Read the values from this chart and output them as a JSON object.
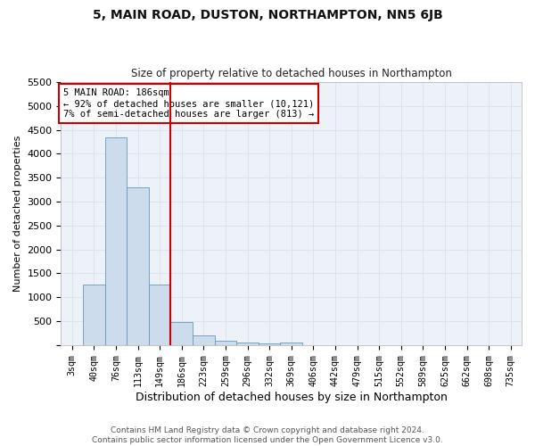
{
  "title": "5, MAIN ROAD, DUSTON, NORTHAMPTON, NN5 6JB",
  "subtitle": "Size of property relative to detached houses in Northampton",
  "xlabel": "Distribution of detached houses by size in Northampton",
  "ylabel": "Number of detached properties",
  "footer_line1": "Contains HM Land Registry data © Crown copyright and database right 2024.",
  "footer_line2": "Contains public sector information licensed under the Open Government Licence v3.0.",
  "annotation_line1": "5 MAIN ROAD: 186sqm",
  "annotation_line2": "← 92% of detached houses are smaller (10,121)",
  "annotation_line3": "7% of semi-detached houses are larger (813) →",
  "bar_labels": [
    "3sqm",
    "40sqm",
    "76sqm",
    "113sqm",
    "149sqm",
    "186sqm",
    "223sqm",
    "259sqm",
    "296sqm",
    "332sqm",
    "369sqm",
    "406sqm",
    "442sqm",
    "479sqm",
    "515sqm",
    "552sqm",
    "589sqm",
    "625sqm",
    "662sqm",
    "698sqm",
    "735sqm"
  ],
  "bar_values": [
    0,
    1260,
    4340,
    3300,
    1260,
    480,
    210,
    95,
    55,
    35,
    55,
    0,
    0,
    0,
    0,
    0,
    0,
    0,
    0,
    0,
    0
  ],
  "bar_color": "#ccdcec",
  "bar_edge_color": "#6699bb",
  "vline_color": "#cc0000",
  "vline_x_index": 4,
  "grid_color": "#d8e4f0",
  "background_color": "#edf2f9",
  "annotation_box_edge_color": "#cc0000",
  "ylim": [
    0,
    5500
  ],
  "yticks": [
    0,
    500,
    1000,
    1500,
    2000,
    2500,
    3000,
    3500,
    4000,
    4500,
    5000,
    5500
  ]
}
